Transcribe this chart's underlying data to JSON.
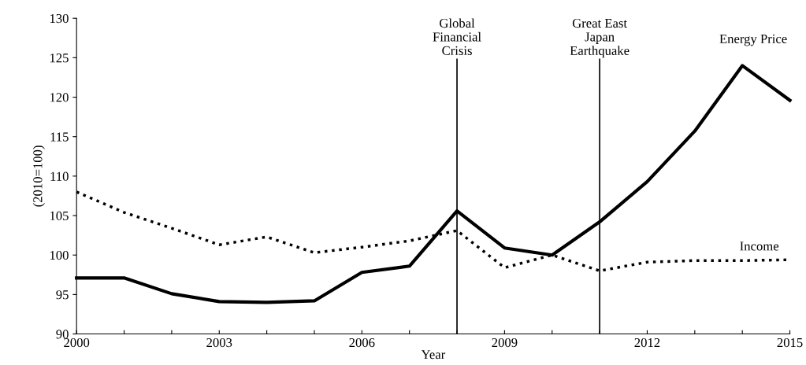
{
  "chart_data": {
    "type": "line",
    "ylabel": "(2010=100)",
    "xlabel": "Year",
    "x": [
      2000,
      2001,
      2002,
      2003,
      2004,
      2005,
      2006,
      2007,
      2008,
      2009,
      2010,
      2011,
      2012,
      2013,
      2014,
      2015
    ],
    "series": [
      {
        "name": "Energy Price",
        "color": "#000000",
        "line_style": "solid",
        "values": [
          97.1,
          97.1,
          95.1,
          94.1,
          94.0,
          94.2,
          97.8,
          98.6,
          105.6,
          100.9,
          100,
          104.2,
          109.3,
          115.7,
          124.0,
          119.6
        ]
      },
      {
        "name": "Income",
        "color": "#000000",
        "line_style": "dotted",
        "values": [
          108,
          105.4,
          103.4,
          101.3,
          102.3,
          100.3,
          101,
          101.8,
          103.1,
          98.4,
          100,
          98,
          99.1,
          99.3,
          99.3,
          99.4
        ]
      }
    ],
    "xlim": [
      2000,
      2015
    ],
    "xticks": [
      2000,
      {
        "value": 2001,
        "label": null
      },
      {
        "value": 2002,
        "label": null
      },
      2003,
      {
        "value": 2004,
        "label": null
      },
      {
        "value": 2005,
        "label": null
      },
      2006,
      {
        "value": 2007,
        "label": null
      },
      {
        "value": 2008,
        "label": null
      },
      2009,
      {
        "value": 2010,
        "label": null
      },
      {
        "value": 2011,
        "label": null
      },
      2012,
      {
        "value": 2013,
        "label": null
      },
      {
        "value": 2014,
        "label": null
      },
      2015
    ],
    "ylim": [
      90,
      130
    ],
    "yticks": [
      90,
      95,
      100,
      105,
      110,
      115,
      120,
      125,
      130
    ],
    "ref_lines": [
      {
        "axis": "x",
        "value": 2008,
        "label": "Global\nFinancial\nCrisis",
        "color": "#000000"
      },
      {
        "axis": "x",
        "value": 2011,
        "label": "Great East\nJapan\nEarthquake",
        "color": "#000000"
      }
    ],
    "grid": false,
    "legend": false,
    "marker": "none"
  }
}
